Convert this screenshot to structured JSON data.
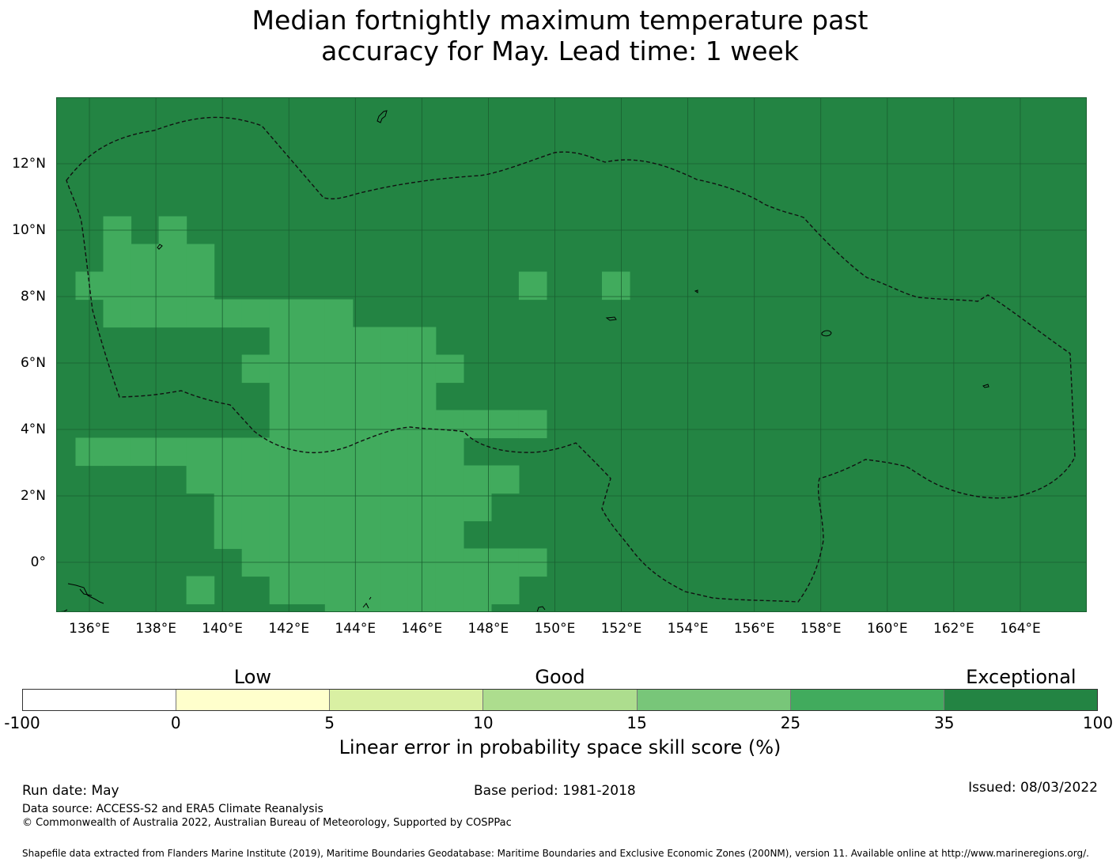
{
  "title": {
    "line1": "Median fortnightly maximum temperature past",
    "line2": "accuracy for May. Lead time: 1 week"
  },
  "map": {
    "lon_range": [
      135,
      166
    ],
    "lat_range": [
      -1.5,
      14
    ],
    "x_ticks": [
      "136°E",
      "138°E",
      "140°E",
      "142°E",
      "144°E",
      "146°E",
      "148°E",
      "150°E",
      "152°E",
      "154°E",
      "156°E",
      "158°E",
      "160°E",
      "162°E",
      "164°E"
    ],
    "x_tick_lons": [
      136,
      138,
      140,
      142,
      144,
      146,
      148,
      150,
      152,
      154,
      156,
      158,
      160,
      162,
      164
    ],
    "y_ticks": [
      "0°",
      "2°N",
      "4°N",
      "6°N",
      "8°N",
      "10°N",
      "12°N"
    ],
    "y_tick_lats": [
      0,
      2,
      4,
      6,
      8,
      10,
      12
    ],
    "base_category": "Exceptional",
    "base_color": "#238443",
    "highlight_category": "25-35",
    "highlight_color": "#41ab5d",
    "highlight_cells": [
      [
        1,
        12
      ],
      [
        3,
        12
      ],
      [
        1,
        11
      ],
      [
        2,
        11
      ],
      [
        3,
        11
      ],
      [
        4,
        11
      ],
      [
        0,
        10
      ],
      [
        1,
        10
      ],
      [
        2,
        10
      ],
      [
        3,
        10
      ],
      [
        4,
        10
      ],
      [
        16,
        10
      ],
      [
        19,
        10
      ],
      [
        1,
        9
      ],
      [
        2,
        9
      ],
      [
        3,
        9
      ],
      [
        4,
        9
      ],
      [
        5,
        9
      ],
      [
        6,
        9
      ],
      [
        7,
        9
      ],
      [
        8,
        9
      ],
      [
        9,
        9
      ],
      [
        7,
        8
      ],
      [
        8,
        8
      ],
      [
        9,
        8
      ],
      [
        10,
        8
      ],
      [
        11,
        8
      ],
      [
        12,
        8
      ],
      [
        6,
        7
      ],
      [
        7,
        7
      ],
      [
        8,
        7
      ],
      [
        9,
        7
      ],
      [
        10,
        7
      ],
      [
        11,
        7
      ],
      [
        12,
        7
      ],
      [
        13,
        7
      ],
      [
        7,
        6
      ],
      [
        8,
        6
      ],
      [
        9,
        6
      ],
      [
        10,
        6
      ],
      [
        11,
        6
      ],
      [
        12,
        6
      ],
      [
        7,
        5
      ],
      [
        8,
        5
      ],
      [
        9,
        5
      ],
      [
        10,
        5
      ],
      [
        11,
        5
      ],
      [
        12,
        5
      ],
      [
        13,
        5
      ],
      [
        14,
        5
      ],
      [
        15,
        5
      ],
      [
        16,
        5
      ],
      [
        0,
        4
      ],
      [
        1,
        4
      ],
      [
        2,
        4
      ],
      [
        3,
        4
      ],
      [
        4,
        4
      ],
      [
        5,
        4
      ],
      [
        6,
        4
      ],
      [
        7,
        4
      ],
      [
        8,
        4
      ],
      [
        9,
        4
      ],
      [
        10,
        4
      ],
      [
        11,
        4
      ],
      [
        12,
        4
      ],
      [
        13,
        4
      ],
      [
        4,
        3
      ],
      [
        5,
        3
      ],
      [
        6,
        3
      ],
      [
        7,
        3
      ],
      [
        8,
        3
      ],
      [
        9,
        3
      ],
      [
        10,
        3
      ],
      [
        11,
        3
      ],
      [
        12,
        3
      ],
      [
        13,
        3
      ],
      [
        14,
        3
      ],
      [
        15,
        3
      ],
      [
        5,
        2
      ],
      [
        6,
        2
      ],
      [
        7,
        2
      ],
      [
        8,
        2
      ],
      [
        9,
        2
      ],
      [
        10,
        2
      ],
      [
        11,
        2
      ],
      [
        12,
        2
      ],
      [
        13,
        2
      ],
      [
        14,
        2
      ],
      [
        5,
        1
      ],
      [
        6,
        1
      ],
      [
        7,
        1
      ],
      [
        8,
        1
      ],
      [
        9,
        1
      ],
      [
        10,
        1
      ],
      [
        11,
        1
      ],
      [
        12,
        1
      ],
      [
        13,
        1
      ],
      [
        6,
        0
      ],
      [
        7,
        0
      ],
      [
        8,
        0
      ],
      [
        9,
        0
      ],
      [
        10,
        0
      ],
      [
        11,
        0
      ],
      [
        12,
        0
      ],
      [
        13,
        0
      ],
      [
        14,
        0
      ],
      [
        15,
        0
      ],
      [
        16,
        0
      ],
      [
        4,
        -1
      ],
      [
        7,
        -1
      ],
      [
        8,
        -1
      ],
      [
        9,
        -1
      ],
      [
        10,
        -1
      ],
      [
        11,
        -1
      ],
      [
        12,
        -1
      ],
      [
        13,
        -1
      ],
      [
        14,
        -1
      ],
      [
        15,
        -1
      ],
      [
        9,
        -2
      ],
      [
        10,
        -2
      ],
      [
        11,
        -2
      ],
      [
        12,
        -2
      ],
      [
        13,
        -2
      ],
      [
        14,
        -2
      ],
      [
        14,
        -3
      ],
      [
        15,
        -3
      ],
      [
        16,
        -3
      ],
      [
        16,
        -4
      ],
      [
        17,
        -4
      ],
      [
        18,
        -4
      ],
      [
        19,
        -4
      ],
      [
        20,
        -4
      ],
      [
        21,
        -4
      ],
      [
        22,
        -4
      ],
      [
        18,
        -5
      ],
      [
        19,
        -5
      ],
      [
        20,
        -5
      ],
      [
        21,
        -5
      ],
      [
        22,
        -5
      ],
      [
        23,
        -5
      ],
      [
        19,
        -6
      ],
      [
        20,
        -6
      ],
      [
        22,
        -6
      ],
      [
        23,
        -6
      ],
      [
        24,
        -6
      ],
      [
        25,
        -6
      ],
      [
        20,
        -7
      ],
      [
        21,
        -7
      ],
      [
        22,
        -7
      ],
      [
        23,
        -7
      ],
      [
        24,
        -7
      ],
      [
        25,
        -7
      ],
      [
        26,
        -7
      ],
      [
        24,
        -8
      ],
      [
        25,
        -8
      ],
      [
        26,
        -8
      ],
      [
        27,
        -8
      ],
      [
        28,
        -8
      ],
      [
        29,
        -8
      ],
      [
        30,
        -8
      ],
      [
        1,
        -9
      ],
      [
        2,
        -9
      ],
      [
        3,
        -9
      ],
      [
        4,
        -9
      ],
      [
        5,
        -9
      ],
      [
        6,
        -9
      ],
      [
        7,
        -9
      ],
      [
        8,
        -9
      ],
      [
        11,
        -9
      ],
      [
        12,
        -9
      ],
      [
        13,
        -9
      ],
      [
        14,
        -9
      ]
    ]
  },
  "legend": {
    "categories": [
      {
        "label": "Low",
        "at": 5
      },
      {
        "label": "Good",
        "at": 15
      },
      {
        "label": "Exceptional",
        "at": 100
      }
    ],
    "segments": [
      {
        "from": -100,
        "to": 0,
        "color": "#ffffff"
      },
      {
        "from": 0,
        "to": 5,
        "color": "#ffffcc"
      },
      {
        "from": 5,
        "to": 10,
        "color": "#d9f0a3"
      },
      {
        "from": 10,
        "to": 15,
        "color": "#addd8e"
      },
      {
        "from": 15,
        "to": 25,
        "color": "#78c679"
      },
      {
        "from": 25,
        "to": 35,
        "color": "#41ab5d"
      },
      {
        "from": 35,
        "to": 100,
        "color": "#238443"
      }
    ],
    "ticks": [
      "-100",
      "0",
      "5",
      "10",
      "15",
      "25",
      "35",
      "100"
    ],
    "label": "Linear error in probability space skill score (%)"
  },
  "footer": {
    "run_date": "Run date: May",
    "base_period": "Base period: 1981-2018",
    "issued": "Issued: 08/03/2022",
    "data_source": "Data source: ACCESS-S2 and ERA5 Climate Reanalysis",
    "copyright": "© Commonwealth of Australia 2022, Australian Bureau of Meteorology, Supported by COSPPac",
    "shapefile": "Shapefile data extracted from Flanders Marine Institute (2019), Maritime Boundaries Geodatabase: Maritime Boundaries and Exclusive Economic Zones (200NM), version 11. Available online at http://www.marineregions.org/."
  }
}
